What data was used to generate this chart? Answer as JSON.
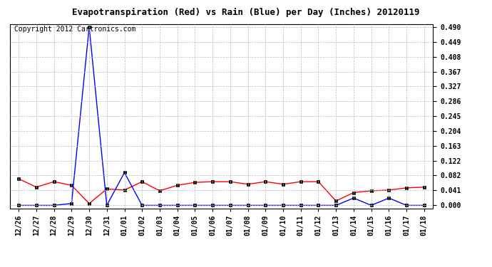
{
  "title": "Evapotranspiration (Red) vs Rain (Blue) per Day (Inches) 20120119",
  "copyright_text": "Copyright 2012 Cartronics.com",
  "x_labels": [
    "12/26",
    "12/27",
    "12/28",
    "12/29",
    "12/30",
    "12/31",
    "01/01",
    "01/02",
    "01/03",
    "01/04",
    "01/05",
    "01/06",
    "01/07",
    "01/08",
    "01/09",
    "01/10",
    "01/11",
    "01/12",
    "01/13",
    "01/14",
    "01/15",
    "01/16",
    "01/17",
    "01/18"
  ],
  "red_data": [
    0.073,
    0.05,
    0.065,
    0.055,
    0.005,
    0.045,
    0.042,
    0.065,
    0.04,
    0.055,
    0.063,
    0.065,
    0.065,
    0.058,
    0.065,
    0.058,
    0.065,
    0.065,
    0.012,
    0.035,
    0.04,
    0.042,
    0.048,
    0.05
  ],
  "blue_data": [
    0.0,
    0.0,
    0.0,
    0.005,
    0.49,
    0.0,
    0.09,
    0.0,
    0.0,
    0.0,
    0.0,
    0.0,
    0.0,
    0.0,
    0.0,
    0.0,
    0.0,
    0.0,
    0.0,
    0.02,
    0.0,
    0.02,
    0.0,
    0.0
  ],
  "ylim": [
    0.0,
    0.49
  ],
  "yticks": [
    0.0,
    0.041,
    0.082,
    0.122,
    0.163,
    0.204,
    0.245,
    0.286,
    0.327,
    0.367,
    0.408,
    0.449,
    0.49
  ],
  "background_color": "#ffffff",
  "plot_bg_color": "#ffffff",
  "grid_color": "#bbbbbb",
  "red_color": "#ff0000",
  "blue_color": "#0000ff",
  "title_fontsize": 9,
  "copyright_fontsize": 7,
  "tick_fontsize": 7,
  "ytick_fontsize": 7
}
